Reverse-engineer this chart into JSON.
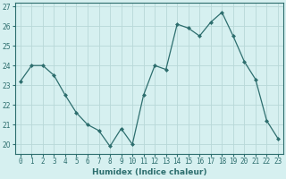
{
  "x": [
    0,
    1,
    2,
    3,
    4,
    5,
    6,
    7,
    8,
    9,
    10,
    11,
    12,
    13,
    14,
    15,
    16,
    17,
    18,
    19,
    20,
    21,
    22,
    23
  ],
  "y": [
    23.2,
    24.0,
    24.0,
    23.5,
    22.5,
    21.6,
    21.0,
    20.7,
    19.9,
    20.8,
    20.0,
    22.5,
    24.0,
    23.8,
    26.1,
    25.9,
    25.5,
    26.2,
    26.7,
    25.5,
    24.2,
    23.3,
    21.2,
    20.3
  ],
  "line_color": "#2d6e6e",
  "marker": "D",
  "marker_size": 2,
  "bg_color": "#d6f0f0",
  "grid_color": "#b8d8d8",
  "tick_color": "#2d6e6e",
  "xlabel": "Humidex (Indice chaleur)",
  "ylim": [
    19.5,
    27.2
  ],
  "yticks": [
    20,
    21,
    22,
    23,
    24,
    25,
    26,
    27
  ],
  "xticks": [
    0,
    1,
    2,
    3,
    4,
    5,
    6,
    7,
    8,
    9,
    10,
    11,
    12,
    13,
    14,
    15,
    16,
    17,
    18,
    19,
    20,
    21,
    22,
    23
  ],
  "xlabel_fontsize": 6.5,
  "tick_fontsize": 5.5,
  "linewidth": 0.9
}
